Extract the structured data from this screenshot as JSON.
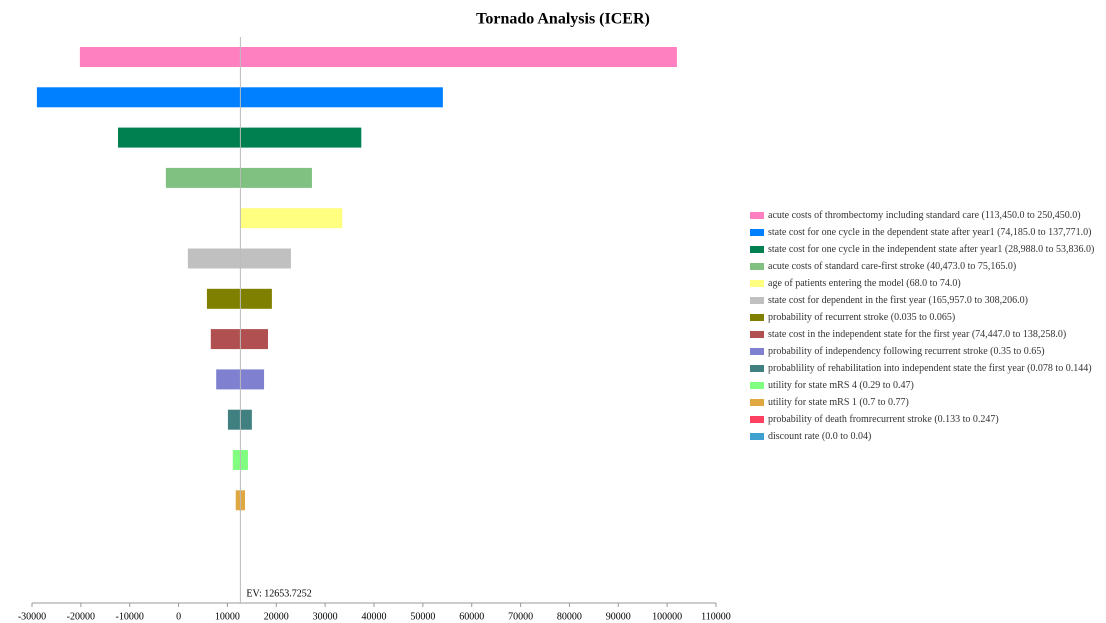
{
  "chart_data": {
    "type": "tornado",
    "title": "Tornado Analysis (ICER)",
    "categories": [
      "acute costs of thrombectomy including standard care (113,450.0 to 250,450.0)",
      "state cost for one cycle in the dependent state after year1 (74,185.0 to 137,771.0)",
      "state cost for one cycle in the independent state after year1 (28,988.0 to 53,836.0)",
      "acute costs of standard care-first stroke (40,473.0 to 75,165.0)",
      "age of patients entering the model (68.0 to 74.0)",
      "state cost for dependent in the first year (165,957.0 to 308,206.0)",
      "probability of recurrent stroke (0.035 to 0.065)",
      "state cost in the independent state for the first year (74,447.0 to 138,258.0)",
      "probability of independency following recurrent stroke (0.35 to 0.65)",
      "probablility of rehabilitation into independent state the first year (0.078 to 0.144)",
      "utility for state mRS 4 (0.29 to 0.47)",
      "utility for state mRS 1 (0.7 to 0.77)",
      "probability of death fromrecurrent stroke (0.133 to 0.247)",
      "discount rate (0.0 to 0.04)"
    ],
    "low": [
      -20200,
      -29000,
      -12400,
      -2600,
      12653.7252,
      1900,
      5800,
      6600,
      7700,
      10100,
      11100,
      11700,
      12653.7252,
      12653.7252
    ],
    "high": [
      102000,
      54100,
      37400,
      27300,
      33500,
      23000,
      19100,
      18300,
      17500,
      15000,
      14200,
      13600,
      12653.7252,
      12653.7252
    ],
    "colors": [
      "#ff80c0",
      "#0080ff",
      "#008050",
      "#80c080",
      "#ffff80",
      "#c0c0c0",
      "#808000",
      "#b05050",
      "#8080d0",
      "#408080",
      "#80ff80",
      "#e0a840",
      "#ff4060",
      "#40a0d0"
    ],
    "ev": 12653.7252,
    "ev_label": "EV: 12653.7252",
    "xlim": [
      -30000,
      110000
    ],
    "xticks": [
      -30000,
      -20000,
      -10000,
      0,
      10000,
      20000,
      30000,
      40000,
      50000,
      60000,
      70000,
      80000,
      90000,
      100000,
      110000
    ]
  }
}
